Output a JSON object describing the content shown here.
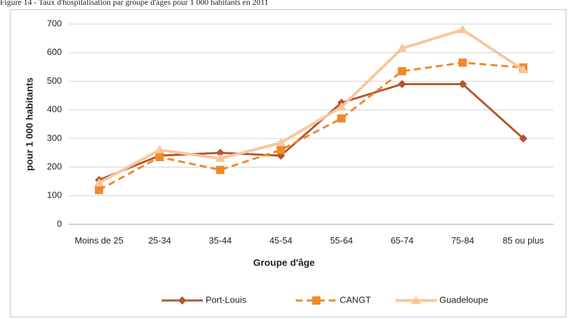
{
  "chart_data": {
    "type": "line",
    "title": "Figure 14 - Taux d'hospitalisation par groupe d'âges pour 1 000 habitants en 2011",
    "x_label": "Groupe d'âge",
    "y_label": "pour 1 000 habitants",
    "categories": [
      "Moins de 25",
      "25-34",
      "35-44",
      "45-54",
      "55-64",
      "65-74",
      "75-84",
      "85 ou plus"
    ],
    "series": [
      {
        "name": "Port-Louis",
        "color": "#b4552c",
        "marker": "diamond",
        "dashed": false,
        "width": 3,
        "values": [
          155,
          240,
          250,
          240,
          425,
          490,
          490,
          300
        ]
      },
      {
        "name": "CANGT",
        "color": "#f0892a",
        "marker": "square",
        "dashed": true,
        "width": 3,
        "values": [
          120,
          235,
          190,
          260,
          370,
          535,
          565,
          548
        ]
      },
      {
        "name": "Guadeloupe",
        "color": "#f8c69c",
        "marker": "triangle",
        "dashed": false,
        "width": 4,
        "values": [
          145,
          260,
          230,
          285,
          410,
          615,
          680,
          540
        ]
      }
    ],
    "ylim": [
      0,
      700
    ],
    "yticks": [
      0,
      100,
      200,
      300,
      400,
      500,
      600,
      700
    ],
    "grid": true,
    "legend": "bottom"
  }
}
